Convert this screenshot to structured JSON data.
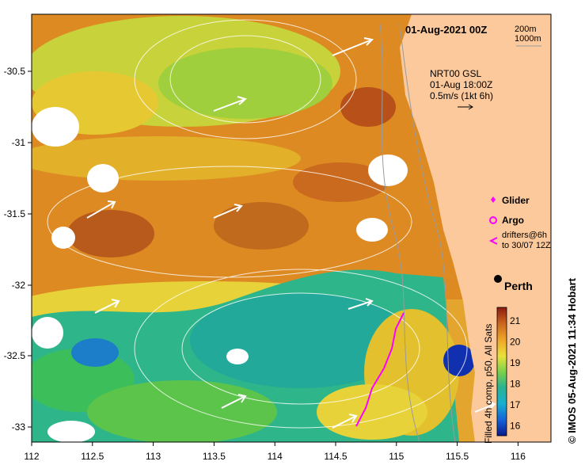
{
  "map": {
    "date_label": "01-Aug-2021 00Z",
    "contour_legend": [
      "200m",
      "1000m"
    ],
    "current_legend": {
      "lines": [
        "NRT00 GSL",
        "01-Aug 18:00Z",
        "0.5m/s (1kt 6h)"
      ]
    },
    "markers_legend": {
      "glider": "Glider",
      "argo": "Argo",
      "drifters_line1": "drifters@6h",
      "drifters_line2": "to 30/07 12Z"
    },
    "city": "Perth",
    "credit": "© IMOS 05-Aug-2021 11:34 Hobart",
    "colorbar": {
      "caption": "Filled 4h comp, p50, All Sats",
      "ticks": [
        "21",
        "20",
        "19",
        "18",
        "17",
        "16"
      ]
    },
    "lon_ticks": [
      "112",
      "112.5",
      "113",
      "113.5",
      "114",
      "114.5",
      "115",
      "115.5",
      "116"
    ],
    "lat_ticks": [
      "-30.5",
      "-31",
      "-31.5",
      "-32",
      "-32.5",
      "-33"
    ],
    "colors": {
      "land": "#fbc99c",
      "warm": "#d88a1a",
      "cool": "#2bb38e",
      "glider": "#ff00ff"
    }
  }
}
